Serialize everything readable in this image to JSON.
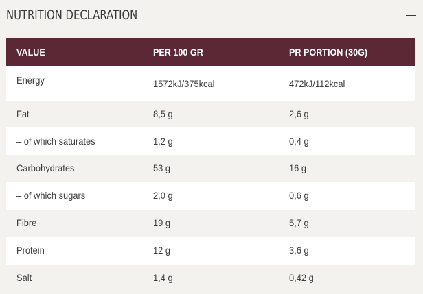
{
  "section": {
    "title": "NUTRITION DECLARATION",
    "collapse_icon": "minus-icon"
  },
  "colors": {
    "header_bg": "#5d2836",
    "row_alt_bg": "#ffffff",
    "page_bg": "#f4f2ef"
  },
  "table": {
    "headers": [
      "VALUE",
      "PER 100 GR",
      "PR PORTION (30G)"
    ],
    "rows": [
      {
        "label": "Energy",
        "per100": "1572kJ/375kcal",
        "portion": "472kJ/112kcal"
      },
      {
        "label": "Fat",
        "per100": "8,5 g",
        "portion": "2,6 g"
      },
      {
        "label": "– of which saturates",
        "per100": "1,2 g",
        "portion": "0,4 g"
      },
      {
        "label": "Carbohydrates",
        "per100": "53 g",
        "portion": "16 g"
      },
      {
        "label": "– of which sugars",
        "per100": "2,0 g",
        "portion": "0,6 g"
      },
      {
        "label": "Fibre",
        "per100": "19 g",
        "portion": "5,7 g"
      },
      {
        "label": "Protein",
        "per100": "12 g",
        "portion": "3,6 g"
      },
      {
        "label": "Salt",
        "per100": "1,4 g",
        "portion": "0,42 g"
      }
    ]
  }
}
